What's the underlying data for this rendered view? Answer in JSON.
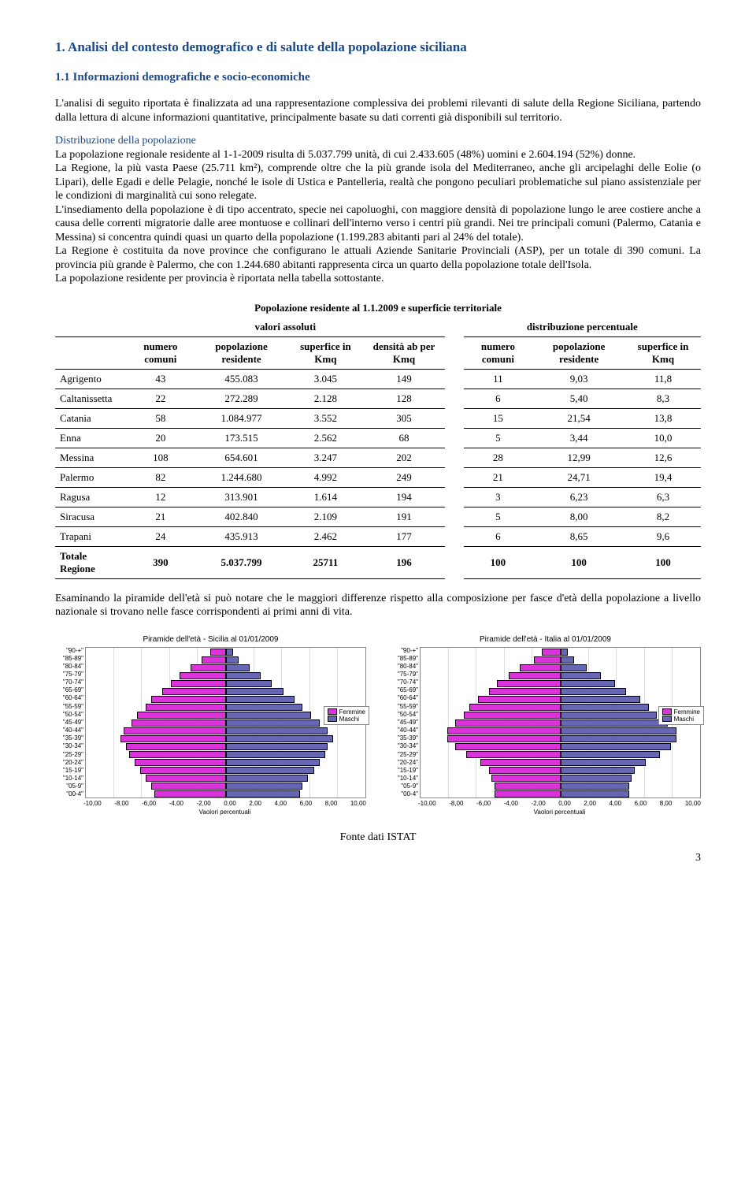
{
  "headings": {
    "main": "1.   Analisi del contesto demografico e di salute della popolazione  siciliana",
    "sub": "1.1 Informazioni demografiche e socio-economiche"
  },
  "paragraphs": {
    "intro": "L'analisi di seguito riportata è finalizzata ad una rappresentazione complessiva dei problemi rilevanti di salute della Regione Siciliana, partendo dalla lettura di alcune informazioni quantitative, principalmente basate su dati correnti già disponibili sul territorio.",
    "distrib_link": "Distribuzione della popolazione",
    "distrib_body": "La popolazione regionale residente al 1-1-2009 risulta di 5.037.799 unità, di cui 2.433.605 (48%) uomini e 2.604.194 (52%) donne.\nLa Regione, la più vasta Paese (25.711 km²), comprende oltre che la più grande isola del  Mediterraneo, anche gli arcipelaghi delle Eolie (o Lipari), delle Egadi e delle Pelagie, nonché le isole di Ustica e Pantelleria, realtà che pongono peculiari problematiche sul piano assistenziale per le condizioni di marginalità cui sono relegate.\nL'insediamento della popolazione è di tipo accentrato, specie nei capoluoghi, con maggiore densità di popolazione lungo le aree costiere anche a causa delle correnti migratorie dalle aree montuose e collinari dell'interno verso i centri più grandi. Nei tre principali comuni (Palermo, Catania e Messina) si concentra quindi quasi un quarto della popolazione (1.199.283 abitanti pari al 24% del totale).\nLa Regione è costituita da nove province che configurano le attuali Aziende Sanitarie Provinciali (ASP), per un totale di 390 comuni. La provincia più grande è Palermo, che con 1.244.680 abitanti rappresenta circa un quarto della popolazione totale dell'Isola.\nLa popolazione residente per provincia è riportata nella tabella sottostante.",
    "closing": "Esaminando la piramide dell'età si può notare che le maggiori differenze rispetto alla composizione per fasce d'età della popolazione a livello nazionale si trovano nelle fasce corrispondenti ai primi anni di vita."
  },
  "table": {
    "title": "Popolazione residente al 1.1.2009 e superficie territoriale",
    "group1": "valori assoluti",
    "group2": "distribuzione percentuale",
    "cols": {
      "c1": "numero comuni",
      "c2": "popolazione residente",
      "c3": "superfice in Kmq",
      "c4": "densità ab per Kmq",
      "c5": "numero comuni",
      "c6": "popolazione residente",
      "c7": "superfice in Kmq"
    },
    "rows": [
      {
        "label": "Agrigento",
        "v": [
          "43",
          "455.083",
          "3.045",
          "149",
          "11",
          "9,03",
          "11,8"
        ]
      },
      {
        "label": "Caltanissetta",
        "v": [
          "22",
          "272.289",
          "2.128",
          "128",
          "6",
          "5,40",
          "8,3"
        ]
      },
      {
        "label": "Catania",
        "v": [
          "58",
          "1.084.977",
          "3.552",
          "305",
          "15",
          "21,54",
          "13,8"
        ]
      },
      {
        "label": "Enna",
        "v": [
          "20",
          "173.515",
          "2.562",
          "68",
          "5",
          "3,44",
          "10,0"
        ]
      },
      {
        "label": "Messina",
        "v": [
          "108",
          "654.601",
          "3.247",
          "202",
          "28",
          "12,99",
          "12,6"
        ]
      },
      {
        "label": "Palermo",
        "v": [
          "82",
          "1.244.680",
          "4.992",
          "249",
          "21",
          "24,71",
          "19,4"
        ]
      },
      {
        "label": "Ragusa",
        "v": [
          "12",
          "313.901",
          "1.614",
          "194",
          "3",
          "6,23",
          "6,3"
        ]
      },
      {
        "label": "Siracusa",
        "v": [
          "21",
          "402.840",
          "2.109",
          "191",
          "5",
          "8,00",
          "8,2"
        ]
      },
      {
        "label": "Trapani",
        "v": [
          "24",
          "435.913",
          "2.462",
          "177",
          "6",
          "8,65",
          "9,6"
        ]
      },
      {
        "label": "Totale Regione",
        "v": [
          "390",
          "5.037.799",
          "25711",
          "196",
          "100",
          "100",
          "100"
        ]
      }
    ]
  },
  "pyramids": {
    "age_labels": [
      "\"90-+\"",
      "\"85-89\"",
      "\"80-84\"",
      "\"75-79\"",
      "\"70-74\"",
      "\"65-69\"",
      "\"60-64\"",
      "\"55-59\"",
      "\"50-54\"",
      "\"45-49\"",
      "\"40-44\"",
      "\"35-39\"",
      "\"30-34\"",
      "\"25-29\"",
      "\"20-24\"",
      "\"15-19\"",
      "\"10-14\"",
      "\"05-9\"",
      "\"00-4\""
    ],
    "x_ticks": [
      "-10,00",
      "-8,00",
      "-6,00",
      "-4,00",
      "-2,00",
      "0,00",
      "2,00",
      "4,00",
      "6,00",
      "8,00",
      "10,00"
    ],
    "x_label": "Vaolori percentuali",
    "x_max": 10.0,
    "colors": {
      "female": "#d933d9",
      "male": "#6666b3",
      "grid": "#dddddd",
      "border": "#888888"
    },
    "legend": {
      "f": "Femmine",
      "m": "Maschi"
    },
    "sicilia": {
      "title": "Piramide dell'età - Sicilia al 01/01/2009",
      "female": [
        1.0,
        1.6,
        2.4,
        3.2,
        3.8,
        4.4,
        5.2,
        5.6,
        6.2,
        6.6,
        7.2,
        7.4,
        7.0,
        6.8,
        6.4,
        6.0,
        5.6,
        5.2,
        5.0
      ],
      "male": [
        0.4,
        0.8,
        1.6,
        2.4,
        3.2,
        4.0,
        4.8,
        5.4,
        6.0,
        6.6,
        7.2,
        7.6,
        7.2,
        7.0,
        6.6,
        6.2,
        5.8,
        5.4,
        5.2
      ]
    },
    "italia": {
      "title": "Piramide dell'età - Italia al 01/01/2009",
      "female": [
        1.2,
        1.8,
        2.8,
        3.6,
        4.4,
        5.0,
        5.8,
        6.4,
        6.8,
        7.4,
        8.0,
        8.0,
        7.4,
        6.6,
        5.6,
        5.0,
        4.8,
        4.6,
        4.6
      ],
      "male": [
        0.4,
        0.9,
        1.8,
        2.8,
        3.8,
        4.6,
        5.6,
        6.2,
        6.8,
        7.6,
        8.2,
        8.2,
        7.8,
        7.0,
        6.0,
        5.2,
        5.0,
        4.8,
        4.8
      ]
    }
  },
  "caption": "Fonte dati ISTAT",
  "page": "3"
}
